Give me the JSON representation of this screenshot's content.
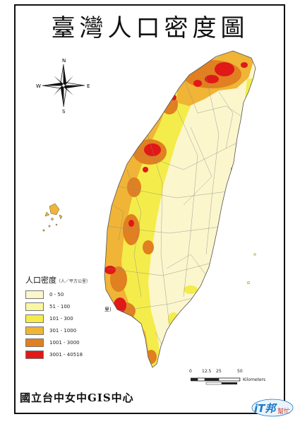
{
  "title": "臺灣人口密度圖",
  "compass": {
    "n": "N",
    "s": "S",
    "e": "E",
    "w": "W"
  },
  "legend": {
    "title": "人口密度",
    "unit": "（人／平方公里）",
    "items": [
      {
        "label": "0 - 50",
        "color": "#fbf6cc"
      },
      {
        "label": "51 - 100",
        "color": "#f9f6a4"
      },
      {
        "label": "101 - 300",
        "color": "#f4ec4a"
      },
      {
        "label": "301 - 1000",
        "color": "#f0b436"
      },
      {
        "label": "1001 - 3000",
        "color": "#e08020"
      },
      {
        "label": "3001 - 40518",
        "color": "#e01818"
      }
    ]
  },
  "stray_label": "里)",
  "scale": {
    "ticks": [
      "0",
      "12.5",
      "25",
      "50"
    ],
    "unit": "Kilometers"
  },
  "credit": "國立台中女中GIS中心",
  "logo": {
    "text": "iT邦",
    "sub": "幫忙"
  }
}
